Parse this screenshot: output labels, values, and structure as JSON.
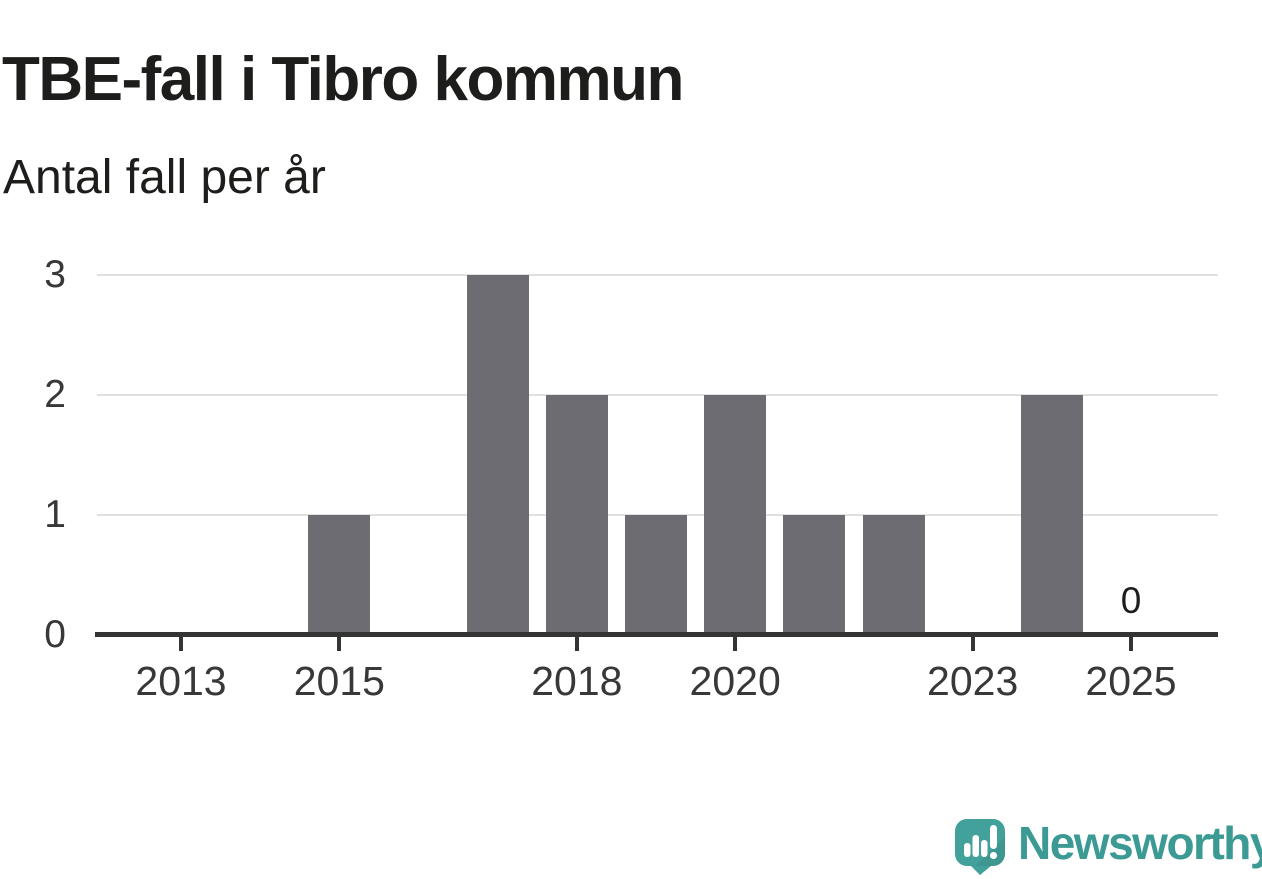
{
  "title": "TBE-fall i Tibro kommun",
  "subtitle": "Antal fall per år",
  "branding": {
    "name": "Newsworthy",
    "icon": "newsworthy-speech-bubble-chart-icon",
    "color": "#3b9b94"
  },
  "colors": {
    "bar": "#6d6c72",
    "axis_line": "#343434",
    "gridline": "#e0e0e0",
    "title_text": "#1d1d1b",
    "tick_label": "#383838",
    "background": "#ffffff"
  },
  "chart_data": {
    "type": "bar",
    "title": "TBE-fall i Tibro kommun",
    "subtitle": "Antal fall per år",
    "xlabel": "",
    "ylabel": "Antal fall per år",
    "categories": [
      2013,
      2014,
      2015,
      2016,
      2017,
      2018,
      2019,
      2020,
      2021,
      2022,
      2023,
      2024,
      2025
    ],
    "values": [
      0,
      0,
      1,
      0,
      3,
      2,
      1,
      2,
      1,
      1,
      0,
      2,
      0
    ],
    "ylim": [
      0,
      3
    ],
    "yticks": [
      0,
      1,
      2,
      3
    ],
    "xticks_labeled": [
      2013,
      2015,
      2018,
      2020,
      2023,
      2025
    ],
    "grid": "horizontal",
    "legend": "none",
    "annotations": [
      {
        "category": 2025,
        "label": "0"
      }
    ]
  }
}
